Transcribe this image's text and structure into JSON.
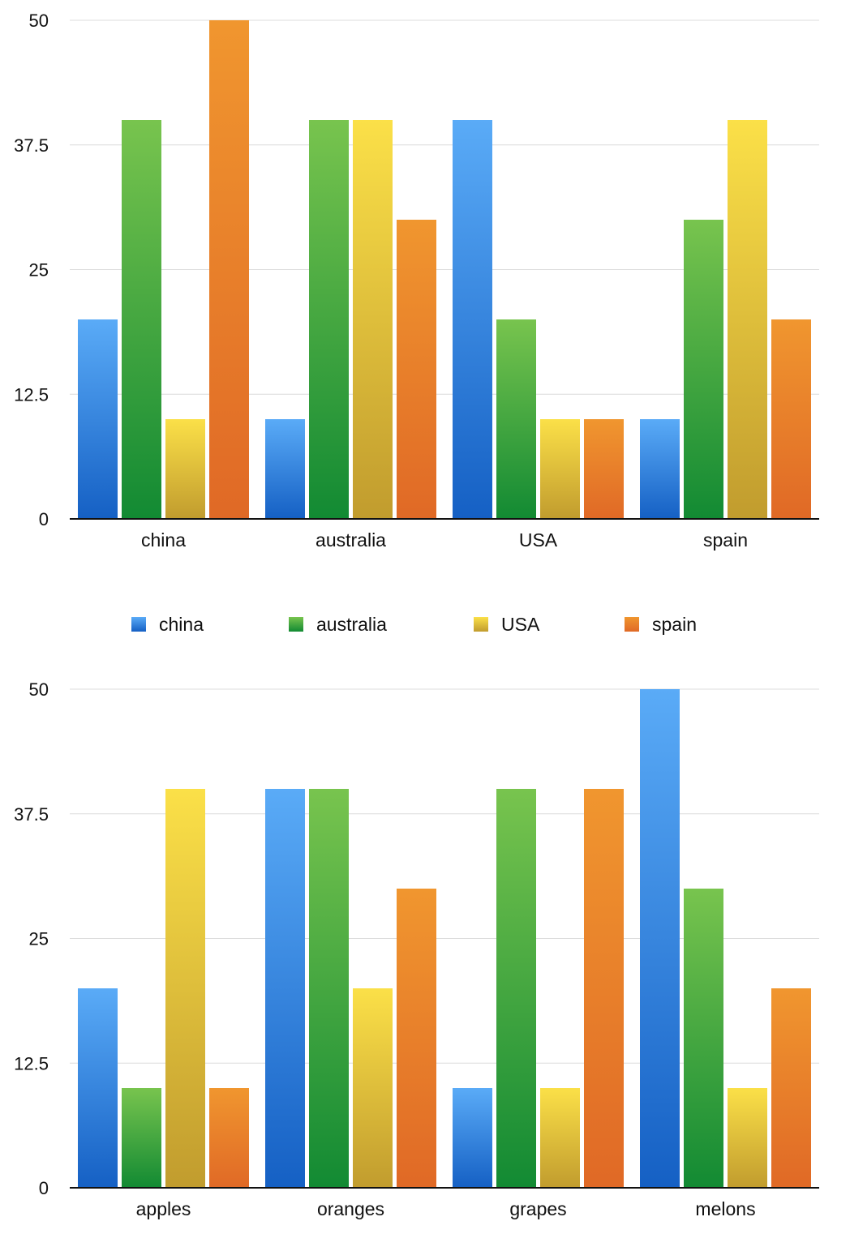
{
  "series_colors": {
    "china": [
      "#5aabf7",
      "#1560c4"
    ],
    "australia": [
      "#78c44e",
      "#128a33"
    ],
    "USA": [
      "#fbe048",
      "#c19c2e"
    ],
    "spain": [
      "#f0962f",
      "#e06926"
    ]
  },
  "legend": {
    "entries": [
      "china",
      "australia",
      "USA",
      "spain"
    ]
  },
  "chart_data": [
    {
      "type": "bar",
      "title": "",
      "xlabel": "",
      "ylabel": "",
      "ylim": [
        0,
        50
      ],
      "yticks": [
        "0",
        "12.5",
        "25",
        "37.5",
        "50"
      ],
      "yticks_values": [
        0,
        12.5,
        25,
        37.5,
        50
      ],
      "categories": [
        "china",
        "australia",
        "USA",
        "spain"
      ],
      "series": [
        {
          "name": "china",
          "values": [
            20,
            10,
            40,
            10
          ]
        },
        {
          "name": "australia",
          "values": [
            40,
            40,
            20,
            30
          ]
        },
        {
          "name": "USA",
          "values": [
            10,
            40,
            10,
            40
          ]
        },
        {
          "name": "spain",
          "values": [
            50,
            30,
            10,
            20
          ]
        }
      ]
    },
    {
      "type": "bar",
      "title": "",
      "xlabel": "",
      "ylabel": "",
      "ylim": [
        0,
        50
      ],
      "yticks": [
        "0",
        "12.5",
        "25",
        "37.5",
        "50"
      ],
      "yticks_values": [
        0,
        12.5,
        25,
        37.5,
        50
      ],
      "categories": [
        "apples",
        "oranges",
        "grapes",
        "melons"
      ],
      "series": [
        {
          "name": "china",
          "values": [
            20,
            40,
            10,
            50
          ]
        },
        {
          "name": "australia",
          "values": [
            10,
            40,
            40,
            30
          ]
        },
        {
          "name": "USA",
          "values": [
            40,
            20,
            10,
            10
          ]
        },
        {
          "name": "spain",
          "values": [
            10,
            30,
            40,
            20
          ]
        }
      ]
    }
  ]
}
